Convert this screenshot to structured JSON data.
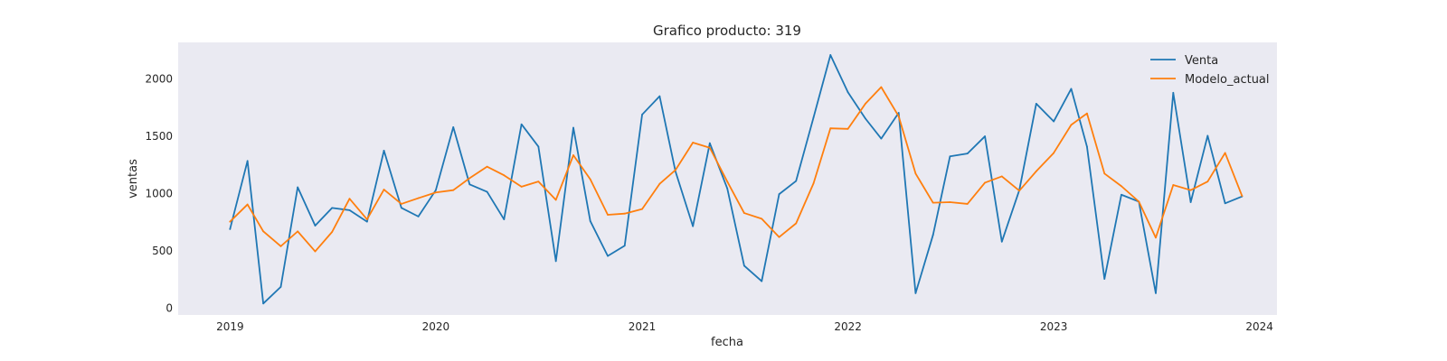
{
  "chart_data": {
    "type": "line",
    "title": "Grafico producto: 319",
    "xlabel": "fecha",
    "ylabel": "ventas",
    "xlim": [
      "2018-10-01",
      "2024-02-01"
    ],
    "ylim": [
      -60,
      2320
    ],
    "xticks": [
      "2019",
      "2020",
      "2021",
      "2022",
      "2023",
      "2024"
    ],
    "yticks": [
      0,
      500,
      1000,
      1500,
      2000
    ],
    "grid": false,
    "legend": "top-right",
    "background": "#eaeaf2",
    "x": [
      "2019-01",
      "2019-02",
      "2019-03",
      "2019-04",
      "2019-05",
      "2019-06",
      "2019-07",
      "2019-08",
      "2019-09",
      "2019-10",
      "2019-11",
      "2019-12",
      "2020-01",
      "2020-02",
      "2020-03",
      "2020-04",
      "2020-05",
      "2020-06",
      "2020-07",
      "2020-08",
      "2020-09",
      "2020-10",
      "2020-11",
      "2020-12",
      "2021-01",
      "2021-02",
      "2021-03",
      "2021-04",
      "2021-05",
      "2021-06",
      "2021-07",
      "2021-08",
      "2021-09",
      "2021-10",
      "2021-11",
      "2021-12",
      "2022-01",
      "2022-02",
      "2022-03",
      "2022-04",
      "2022-05",
      "2022-06",
      "2022-07",
      "2022-08",
      "2022-09",
      "2022-10",
      "2022-11",
      "2022-12",
      "2023-01",
      "2023-02",
      "2023-03",
      "2023-04",
      "2023-05",
      "2023-06",
      "2023-07",
      "2023-08",
      "2023-09",
      "2023-10",
      "2023-11",
      "2023-12"
    ],
    "series": [
      {
        "name": "Venta",
        "color": "#1f77b4",
        "values": [
          690,
          1285,
          40,
          185,
          1055,
          720,
          875,
          855,
          755,
          1375,
          875,
          800,
          1030,
          1580,
          1080,
          1015,
          775,
          1605,
          1410,
          410,
          1575,
          760,
          455,
          545,
          1690,
          1850,
          1195,
          715,
          1440,
          1045,
          370,
          235,
          995,
          1110,
          1665,
          2210,
          1885,
          1655,
          1480,
          1705,
          130,
          640,
          1325,
          1350,
          1500,
          580,
          1030,
          1785,
          1630,
          1915,
          1410,
          255,
          990,
          930,
          130,
          1880,
          925,
          1505,
          915,
          975
        ]
      },
      {
        "name": "Modelo_actual",
        "color": "#ff7f0e",
        "values": [
          755,
          905,
          670,
          540,
          670,
          495,
          665,
          955,
          775,
          1035,
          910,
          960,
          1010,
          1030,
          1135,
          1235,
          1160,
          1060,
          1105,
          945,
          1335,
          1125,
          815,
          825,
          865,
          1085,
          1205,
          1445,
          1400,
          1105,
          830,
          780,
          620,
          740,
          1090,
          1570,
          1565,
          1785,
          1930,
          1675,
          1175,
          920,
          925,
          910,
          1095,
          1150,
          1025,
          1195,
          1355,
          1600,
          1700,
          1175,
          1065,
          930,
          615,
          1075,
          1030,
          1105,
          1355,
          980
        ]
      }
    ]
  }
}
